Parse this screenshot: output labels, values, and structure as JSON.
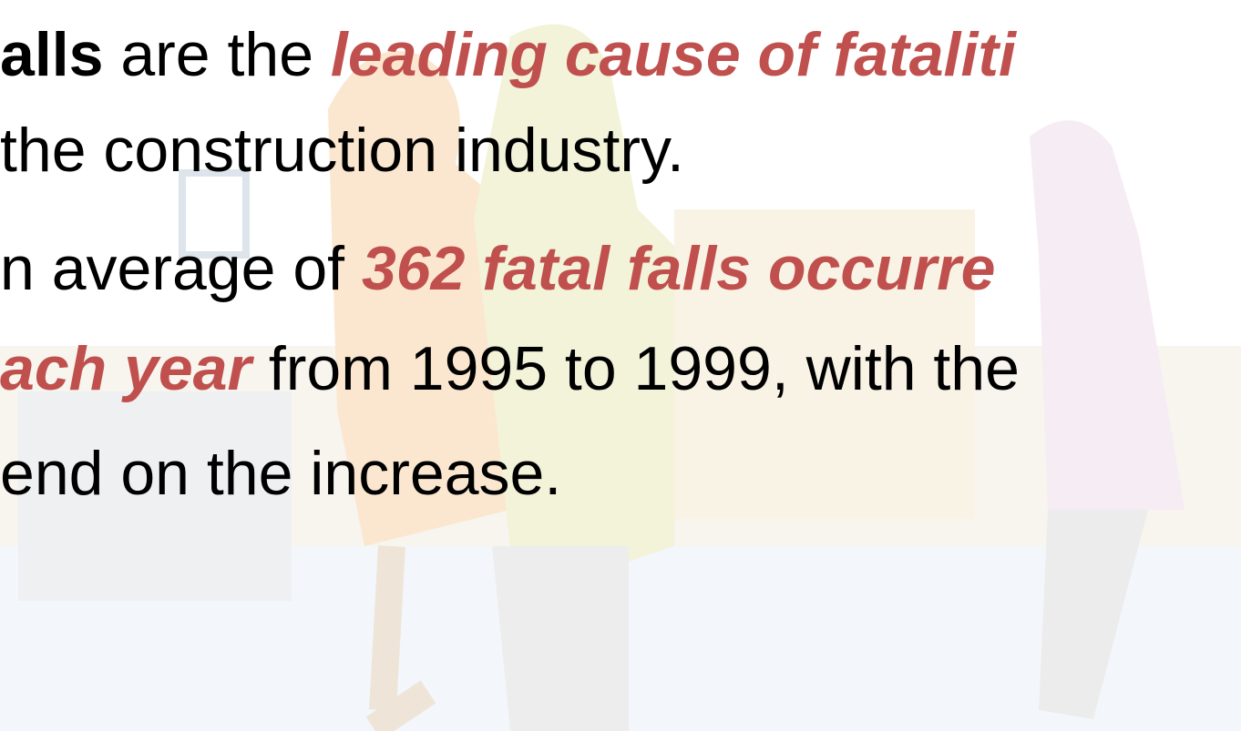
{
  "slide": {
    "bullets": [
      {
        "lines": [
          [
            {
              "text": "alls",
              "style": "bold"
            },
            {
              "text": " are the ",
              "style": "plain"
            },
            {
              "text": "leading cause of fataliti",
              "style": "emph"
            }
          ],
          [
            {
              "text": " the construction industry.",
              "style": "plain"
            }
          ]
        ]
      },
      {
        "lines": [
          [
            {
              "text": "n average of ",
              "style": "plain"
            },
            {
              "text": "362 fatal falls occurre",
              "style": "emph"
            }
          ],
          [
            {
              "text": "ach year",
              "style": "emph"
            },
            {
              "text": " from 1995 to 1999, with the",
              "style": "plain"
            }
          ],
          [
            {
              "text": "end on the increase.",
              "style": "plain"
            }
          ]
        ]
      }
    ]
  }
}
